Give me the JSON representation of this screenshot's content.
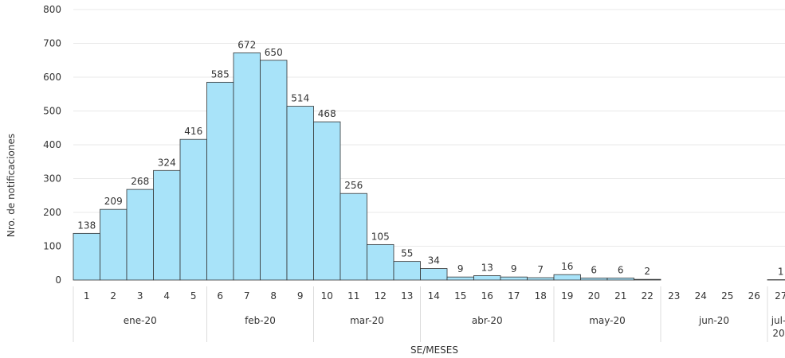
{
  "chart_data": {
    "type": "bar",
    "xlabel": "SE/MESES",
    "ylabel": "Nro. de notificaciones",
    "ylim": [
      0,
      800
    ],
    "y_ticks": [
      0,
      100,
      200,
      300,
      400,
      500,
      600,
      700,
      800
    ],
    "grid": true,
    "categories": [
      "1",
      "2",
      "3",
      "4",
      "5",
      "6",
      "7",
      "8",
      "9",
      "10",
      "11",
      "12",
      "13",
      "14",
      "15",
      "16",
      "17",
      "18",
      "19",
      "20",
      "21",
      "22",
      "23",
      "24",
      "25",
      "26",
      "27"
    ],
    "values": [
      138,
      209,
      268,
      324,
      416,
      585,
      672,
      650,
      514,
      468,
      256,
      105,
      55,
      34,
      9,
      13,
      9,
      7,
      16,
      6,
      6,
      2,
      0,
      0,
      0,
      0,
      1
    ],
    "data_labels": [
      "138",
      "209",
      "268",
      "324",
      "416",
      "585",
      "672",
      "650",
      "514",
      "468",
      "256",
      "105",
      "55",
      "34",
      "9",
      "13",
      "9",
      "7",
      "16",
      "6",
      "6",
      "2",
      "",
      "",
      "",
      "",
      "1"
    ],
    "month_groups": [
      {
        "label": "ene-20",
        "count": 5
      },
      {
        "label": "feb-20",
        "count": 4
      },
      {
        "label": "mar-20",
        "count": 4
      },
      {
        "label": "abr-20",
        "count": 5
      },
      {
        "label": "may-20",
        "count": 4
      },
      {
        "label": "jun-20",
        "count": 4
      },
      {
        "label": "jul-20",
        "count": 1
      }
    ],
    "bar_color": "#a8e3f9"
  }
}
